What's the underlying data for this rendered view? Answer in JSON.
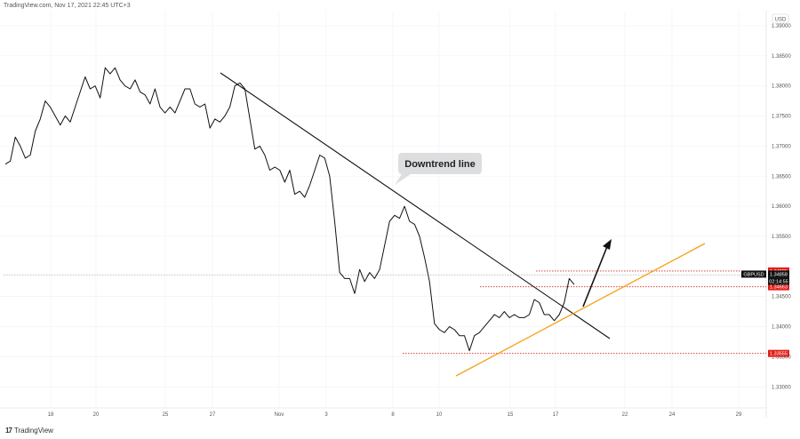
{
  "header": {
    "source": "TradingView.com, Nov 17, 2021 22:45 UTC+3"
  },
  "footer": {
    "brand": "TradingView"
  },
  "currency_badge": "USD",
  "chart_data": {
    "type": "line",
    "symbol": "GBPUSD",
    "x_ticks": [
      "18",
      "20",
      "25",
      "27",
      "Nov",
      "3",
      "8",
      "10",
      "15",
      "17",
      "22",
      "24",
      "29"
    ],
    "y_ticks": [
      "1.39000",
      "1.38500",
      "1.38000",
      "1.37500",
      "1.37000",
      "1.36500",
      "1.36000",
      "1.35500",
      "1.34500",
      "1.34000",
      "1.33500",
      "1.33000"
    ],
    "ylim": [
      1.3265,
      1.3925
    ],
    "series": [
      {
        "values": [
          1.367,
          1.3675,
          1.3715,
          1.37,
          1.368,
          1.3685,
          1.3725,
          1.3745,
          1.3775,
          1.3765,
          1.375,
          1.3735,
          1.375,
          1.374,
          1.3765,
          1.379,
          1.3815,
          1.3795,
          1.38,
          1.378,
          1.383,
          1.382,
          1.383,
          1.381,
          1.38,
          1.3795,
          1.381,
          1.379,
          1.3785,
          1.377,
          1.3795,
          1.3765,
          1.3755,
          1.3765,
          1.3755,
          1.3775,
          1.3795,
          1.3795,
          1.377,
          1.3765,
          1.377,
          1.373,
          1.3745,
          1.374,
          1.375,
          1.3765,
          1.38,
          1.3805,
          1.3795,
          1.3745,
          1.3695,
          1.37,
          1.3685,
          1.366,
          1.3665,
          1.366,
          1.364,
          1.366,
          1.362,
          1.3625,
          1.3615,
          1.3635,
          1.366,
          1.3685,
          1.368,
          1.365,
          1.3575,
          1.349,
          1.348,
          1.348,
          1.3455,
          1.3495,
          1.3475,
          1.349,
          1.348,
          1.3495,
          1.3535,
          1.3575,
          1.3585,
          1.358,
          1.36,
          1.3575,
          1.357,
          1.355,
          1.3515,
          1.3475,
          1.3405,
          1.3395,
          1.339,
          1.34,
          1.3395,
          1.3385,
          1.3385,
          1.336,
          1.3385,
          1.339,
          1.34,
          1.341,
          1.342,
          1.3415,
          1.3425,
          1.3415,
          1.342,
          1.3415,
          1.3415,
          1.342,
          1.3445,
          1.344,
          1.342,
          1.342,
          1.341,
          1.342,
          1.344,
          1.348,
          1.347
        ]
      }
    ],
    "price_levels": [
      {
        "label": "1.34925",
        "value": 1.34925,
        "color": "#e0201c"
      },
      {
        "label": "1.34663",
        "value": 1.34663,
        "color": "#e0201c"
      },
      {
        "label": "1.33555",
        "value": 1.33555,
        "color": "#e0201c"
      }
    ],
    "current_price": {
      "symbol": "GBPUSD",
      "value_label": "1.34858",
      "countdown": "02:14:55",
      "value": 1.34858
    },
    "annotations": {
      "downtrend_label": "Downtrend line"
    }
  },
  "colors": {
    "price_line": "#111111",
    "trendline_down": "#111111",
    "trendline_up": "#f5a21b",
    "level_red": "#e0201c",
    "grid": "#f0f1f4",
    "axis_text": "#555555"
  }
}
